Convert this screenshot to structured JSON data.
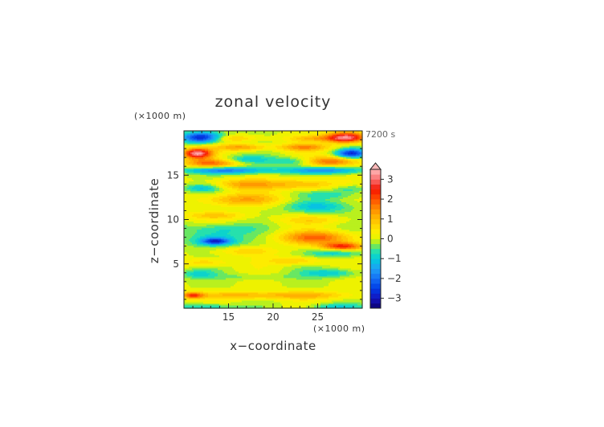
{
  "chart_data": {
    "type": "heatmap",
    "title": "zonal velocity",
    "xlabel": "x−coordinate",
    "ylabel": "z−coordinate",
    "x_unit": "(×1000 m)",
    "y_unit": "(×1000 m)",
    "time_label": "7200 s",
    "xlim": [
      10,
      30
    ],
    "ylim": [
      0,
      20
    ],
    "x_ticks": [
      "15",
      "20",
      "25"
    ],
    "y_ticks": [
      "5",
      "10",
      "15"
    ],
    "colorbar": {
      "range": [
        -3.5,
        3.5
      ],
      "step": 0.25,
      "extend": "max",
      "tick_labels": [
        "3",
        "2",
        "1",
        "0",
        "−1",
        "−2",
        "−3"
      ],
      "tick_values": [
        3,
        2,
        1,
        0,
        -1,
        -2,
        -3
      ]
    },
    "features": [
      {
        "x": 11.5,
        "z": 17.5,
        "rx": 1.6,
        "rz": 0.55,
        "v": 3.3
      },
      {
        "x": 12.0,
        "z": 19.3,
        "rx": 2.2,
        "rz": 0.6,
        "v": -3.0
      },
      {
        "x": 28.2,
        "z": 19.3,
        "rx": 2.2,
        "rz": 0.6,
        "v": 3.3
      },
      {
        "x": 28.8,
        "z": 17.5,
        "rx": 1.6,
        "rz": 0.5,
        "v": -2.6
      },
      {
        "x": 16.5,
        "z": 18.2,
        "rx": 2.8,
        "rz": 0.4,
        "v": 1.4
      },
      {
        "x": 23.5,
        "z": 18.2,
        "rx": 2.8,
        "rz": 0.4,
        "v": 1.4
      },
      {
        "x": 15.5,
        "z": 19.2,
        "rx": 3.0,
        "rz": 0.35,
        "v": 0.9
      },
      {
        "x": 24.5,
        "z": 19.2,
        "rx": 3.0,
        "rz": 0.35,
        "v": 0.9
      },
      {
        "x": 13.0,
        "z": 16.4,
        "rx": 3.0,
        "rz": 0.5,
        "v": 1.8
      },
      {
        "x": 26.0,
        "z": 16.6,
        "rx": 3.5,
        "rz": 0.55,
        "v": 2.0
      },
      {
        "x": 14.5,
        "z": 15.6,
        "rx": 4.5,
        "rz": 0.4,
        "v": -1.9
      },
      {
        "x": 25.5,
        "z": 15.6,
        "rx": 4.5,
        "rz": 0.4,
        "v": -1.7
      },
      {
        "x": 22.8,
        "z": 16.6,
        "rx": 2.8,
        "rz": 0.5,
        "v": -1.3
      },
      {
        "x": 17.0,
        "z": 16.8,
        "rx": 2.8,
        "rz": 0.45,
        "v": -0.9
      },
      {
        "x": 16.8,
        "z": 14.0,
        "rx": 4.0,
        "rz": 0.6,
        "v": 1.2
      },
      {
        "x": 23.5,
        "z": 14.0,
        "rx": 3.5,
        "rz": 0.6,
        "v": 1.1
      },
      {
        "x": 12.0,
        "z": 13.6,
        "rx": 2.2,
        "rz": 0.45,
        "v": -1.0
      },
      {
        "x": 28.5,
        "z": 13.5,
        "rx": 2.0,
        "rz": 0.45,
        "v": -0.8
      },
      {
        "x": 16.5,
        "z": 12.3,
        "rx": 4.5,
        "rz": 0.7,
        "v": 1.2
      },
      {
        "x": 25.0,
        "z": 11.5,
        "rx": 3.5,
        "rz": 0.7,
        "v": -1.1
      },
      {
        "x": 26.5,
        "z": 12.8,
        "rx": 3.0,
        "rz": 0.45,
        "v": -0.7
      },
      {
        "x": 13.5,
        "z": 10.5,
        "rx": 3.5,
        "rz": 0.45,
        "v": 0.8
      },
      {
        "x": 14.0,
        "z": 9.0,
        "rx": 4.0,
        "rz": 0.6,
        "v": -0.7
      },
      {
        "x": 24.5,
        "z": 10.0,
        "rx": 4.0,
        "rz": 0.5,
        "v": 0.6
      },
      {
        "x": 13.5,
        "z": 7.8,
        "rx": 3.0,
        "rz": 0.9,
        "v": -1.2
      },
      {
        "x": 13.5,
        "z": 7.6,
        "rx": 1.5,
        "rz": 0.35,
        "v": -2.0
      },
      {
        "x": 17.0,
        "z": 6.5,
        "rx": 3.5,
        "rz": 0.5,
        "v": 0.7
      },
      {
        "x": 25.0,
        "z": 8.0,
        "rx": 4.0,
        "rz": 0.75,
        "v": 1.8
      },
      {
        "x": 27.8,
        "z": 7.0,
        "rx": 2.3,
        "rz": 0.45,
        "v": 2.4
      },
      {
        "x": 27.0,
        "z": 6.3,
        "rx": 3.0,
        "rz": 0.5,
        "v": -1.0
      },
      {
        "x": 12.5,
        "z": 5.2,
        "rx": 2.5,
        "rz": 0.45,
        "v": 0.8
      },
      {
        "x": 22.5,
        "z": 5.4,
        "rx": 3.0,
        "rz": 0.45,
        "v": 0.9
      },
      {
        "x": 11.5,
        "z": 3.9,
        "rx": 2.0,
        "rz": 0.5,
        "v": -0.8
      },
      {
        "x": 26.5,
        "z": 4.0,
        "rx": 3.0,
        "rz": 0.5,
        "v": -1.0
      },
      {
        "x": 18.0,
        "z": 3.6,
        "rx": 4.0,
        "rz": 0.35,
        "v": -0.4
      },
      {
        "x": 16.0,
        "z": 1.5,
        "rx": 5.0,
        "rz": 0.45,
        "v": 1.0
      },
      {
        "x": 24.0,
        "z": 1.5,
        "rx": 5.0,
        "rz": 0.45,
        "v": 1.0
      },
      {
        "x": 11.0,
        "z": 1.5,
        "rx": 1.2,
        "rz": 0.35,
        "v": 2.0
      },
      {
        "x": 12.5,
        "z": 0.2,
        "rx": 3.0,
        "rz": 0.35,
        "v": -1.0
      },
      {
        "x": 27.0,
        "z": 0.2,
        "rx": 3.0,
        "rz": 0.35,
        "v": -0.9
      }
    ]
  }
}
